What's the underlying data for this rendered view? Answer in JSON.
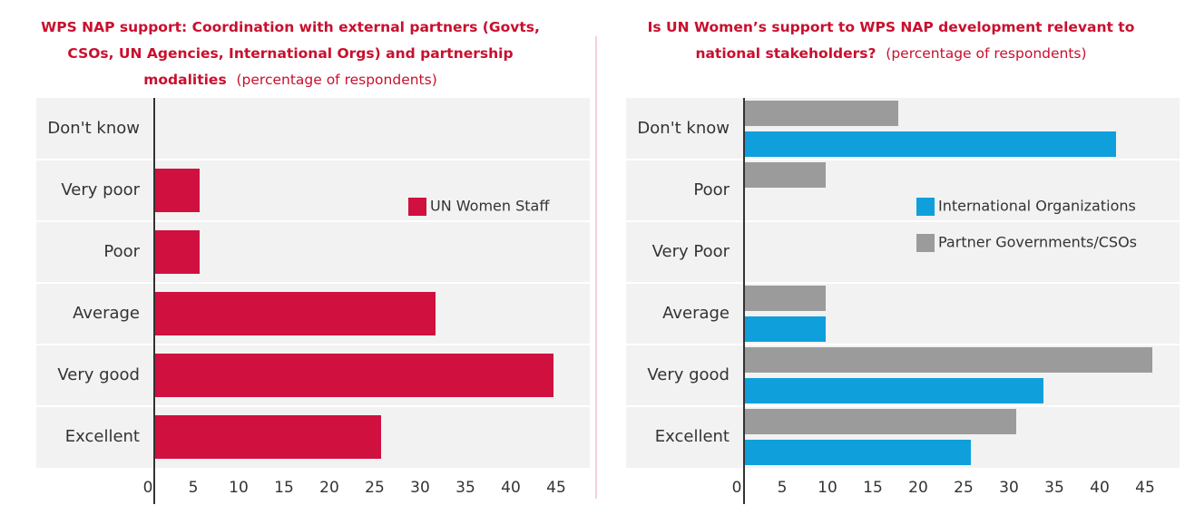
{
  "chart_data": [
    {
      "type": "bar",
      "orientation": "horizontal",
      "title_lines": [
        "WPS NAP support: Coordination with external partners (Govts,",
        "CSOs, UN Agencies, International Orgs) and partnership",
        "modalities"
      ],
      "subtitle": "(percentage of respondents)",
      "categories": [
        "Don't know",
        "Very poor",
        "Poor",
        "Average",
        "Very good",
        "Excellent"
      ],
      "series": [
        {
          "name": "UN Women Staff",
          "color": "#d0103f",
          "values": [
            0,
            5,
            5,
            31,
            44,
            25
          ]
        }
      ],
      "xlim": [
        0,
        45
      ],
      "xticks": [
        0,
        5,
        10,
        15,
        20,
        25,
        30,
        35,
        40,
        45
      ]
    },
    {
      "type": "bar",
      "orientation": "horizontal",
      "title_lines": [
        "Is UN Women’s support to WPS NAP development relevant to",
        "national stakeholders?"
      ],
      "subtitle": "(percentage of respondents)",
      "categories": [
        "Don't know",
        "Poor",
        "Very Poor",
        "Average",
        "Very good",
        "Excellent"
      ],
      "series": [
        {
          "name": "Partner Governments/CSOs",
          "color": "#9b9b9b",
          "values": [
            17,
            9,
            0,
            9,
            45,
            30
          ]
        },
        {
          "name": "International Organizations",
          "color": "#0fa0dc",
          "values": [
            41,
            0,
            0,
            9,
            33,
            25
          ]
        }
      ],
      "xlim": [
        0,
        45
      ],
      "xticks": [
        0,
        5,
        10,
        15,
        20,
        25,
        30,
        35,
        40,
        45
      ]
    }
  ]
}
